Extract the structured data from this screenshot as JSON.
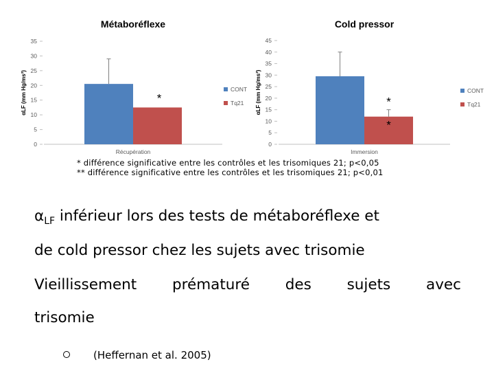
{
  "chart_data": [
    {
      "type": "bar",
      "title": "Métaboréflexe",
      "ylabel": "αLF (mm Hg/ms²)",
      "ylim": [
        0,
        35
      ],
      "yticks": [
        0,
        5,
        10,
        15,
        20,
        25,
        30,
        35
      ],
      "categories": [
        "Récupération"
      ],
      "series": [
        {
          "name": "CONT",
          "values": [
            20.5
          ],
          "error": [
            8.5
          ],
          "color": "#4f81bd"
        },
        {
          "name": "Tq21",
          "values": [
            12.5
          ],
          "color": "#c0504d"
        }
      ],
      "annotations": [
        {
          "text": "*",
          "series": 1
        }
      ],
      "legend": "right"
    },
    {
      "type": "bar",
      "title": "Cold pressor",
      "ylabel": "αLF (mm Hg/ms²)",
      "ylim": [
        0,
        45
      ],
      "yticks": [
        0,
        5,
        10,
        15,
        20,
        25,
        30,
        35,
        40,
        45
      ],
      "categories": [
        "Immersion"
      ],
      "series": [
        {
          "name": "CONT",
          "values": [
            29.5
          ],
          "error": [
            10.5
          ],
          "color": "#4f81bd"
        },
        {
          "name": "Tq21",
          "values": [
            12
          ],
          "error": [
            3
          ],
          "color": "#c0504d"
        }
      ],
      "annotations": [
        {
          "text": "**",
          "series": 1
        }
      ],
      "legend": "right"
    }
  ],
  "notes": {
    "note1": "* différence significative entre les contrôles et les trisomiques 21; p<0,05",
    "note2": "** différence significative entre les contrôles et les trisomiques 21; p<0,01"
  },
  "text": {
    "alpha": "α",
    "sub": "LF",
    "line1_rest": " inférieur lors des tests de métaboréflexe et",
    "line2": "de cold pressor chez les sujets avec trisomie",
    "line3_words": [
      "Vieillissement",
      "prématuré",
      "des",
      "sujets",
      "avec"
    ],
    "line4": "trisomie",
    "citation": "(Heffernan et al. 2005)"
  }
}
